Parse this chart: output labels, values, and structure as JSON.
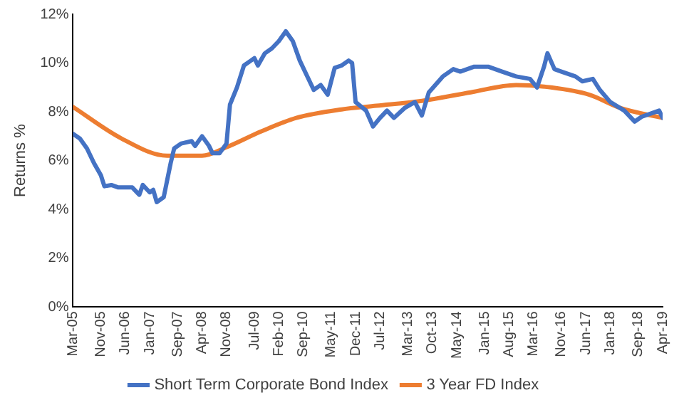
{
  "chart_data": {
    "type": "line",
    "ylabel": "Returns %",
    "legend": "bottom",
    "line_style": "solid",
    "marker": "none",
    "xlim": [
      "2005-03",
      "2019-04"
    ],
    "xticks": [
      {
        "value": "2005-03",
        "label": "Mar-05"
      },
      {
        "value": "2005-11",
        "label": "Nov-05"
      },
      {
        "value": "2006-06",
        "label": "Jun-06"
      },
      {
        "value": "2007-01",
        "label": "Jan-07"
      },
      {
        "value": "2007-09",
        "label": "Sep-07"
      },
      {
        "value": "2008-04",
        "label": "Apr-08"
      },
      {
        "value": "2008-11",
        "label": "Nov-08"
      },
      {
        "value": "2009-07",
        "label": "Jul-09"
      },
      {
        "value": "2010-02",
        "label": "Feb-10"
      },
      {
        "value": "2010-09",
        "label": "Sep-10"
      },
      {
        "value": "2011-05",
        "label": "May-11"
      },
      {
        "value": "2011-12",
        "label": "Dec-11"
      },
      {
        "value": "2012-07",
        "label": "Jul-12"
      },
      {
        "value": "2013-03",
        "label": "Mar-13"
      },
      {
        "value": "2013-10",
        "label": "Oct-13"
      },
      {
        "value": "2014-05",
        "label": "May-14"
      },
      {
        "value": "2015-01",
        "label": "Jan-15"
      },
      {
        "value": "2015-08",
        "label": "Aug-15"
      },
      {
        "value": "2016-03",
        "label": "Mar-16"
      },
      {
        "value": "2016-11",
        "label": "Nov-16"
      },
      {
        "value": "2017-06",
        "label": "Jun-17"
      },
      {
        "value": "2018-01",
        "label": "Jan-18"
      },
      {
        "value": "2018-09",
        "label": "Sep-18"
      },
      {
        "value": "2019-04",
        "label": "Apr-19"
      }
    ],
    "ylim": [
      0,
      12
    ],
    "yticks": [
      {
        "value": 0,
        "label": "0%"
      },
      {
        "value": 2,
        "label": "2%"
      },
      {
        "value": 4,
        "label": "4%"
      },
      {
        "value": 6,
        "label": "6%"
      },
      {
        "value": 8,
        "label": "8%"
      },
      {
        "value": 10,
        "label": "10%"
      },
      {
        "value": 12,
        "label": "12%"
      }
    ],
    "series": [
      {
        "name": "Short Term Corporate Bond Index",
        "color": "#4472c4",
        "x": [
          "2005-03",
          "2005-05",
          "2005-07",
          "2005-09",
          "2005-11",
          "2005-12",
          "2006-02",
          "2006-04",
          "2006-08",
          "2006-10",
          "2006-11",
          "2007-01",
          "2007-02",
          "2007-03",
          "2007-05",
          "2007-07",
          "2007-08",
          "2007-10",
          "2008-01",
          "2008-02",
          "2008-04",
          "2008-06",
          "2008-07",
          "2008-09",
          "2008-11",
          "2008-12",
          "2009-02",
          "2009-04",
          "2009-06",
          "2009-07",
          "2009-08",
          "2009-10",
          "2009-12",
          "2010-02",
          "2010-04",
          "2010-06",
          "2010-08",
          "2010-10",
          "2010-12",
          "2011-02",
          "2011-04",
          "2011-06",
          "2011-08",
          "2011-10",
          "2011-11",
          "2011-12",
          "2012-03",
          "2012-05",
          "2012-07",
          "2012-09",
          "2012-11",
          "2013-02",
          "2013-05",
          "2013-07",
          "2013-09",
          "2014-01",
          "2014-04",
          "2014-06",
          "2014-10",
          "2015-02",
          "2015-06",
          "2015-10",
          "2016-02",
          "2016-04",
          "2016-06",
          "2016-07",
          "2016-09",
          "2016-11",
          "2017-03",
          "2017-05",
          "2017-08",
          "2017-10",
          "2018-01",
          "2018-05",
          "2018-08",
          "2018-10",
          "2019-01",
          "2019-03",
          "2019-04"
        ],
        "values": [
          7.1,
          6.9,
          6.5,
          5.9,
          5.4,
          4.95,
          5.0,
          4.9,
          4.9,
          4.6,
          5.0,
          4.7,
          4.8,
          4.3,
          4.5,
          5.9,
          6.5,
          6.7,
          6.8,
          6.6,
          7.0,
          6.6,
          6.3,
          6.3,
          6.7,
          8.3,
          9.0,
          9.9,
          10.1,
          10.2,
          9.9,
          10.4,
          10.6,
          10.9,
          11.3,
          10.9,
          10.1,
          9.5,
          8.9,
          9.1,
          8.7,
          9.8,
          9.9,
          10.1,
          10.0,
          8.4,
          8.05,
          7.4,
          7.75,
          8.05,
          7.75,
          8.15,
          8.4,
          7.85,
          8.8,
          9.45,
          9.75,
          9.65,
          9.85,
          9.85,
          9.65,
          9.45,
          9.35,
          9.0,
          9.85,
          10.4,
          9.75,
          9.65,
          9.45,
          9.25,
          9.35,
          8.9,
          8.4,
          8.05,
          7.6,
          7.8,
          7.95,
          8.05,
          7.75
        ]
      },
      {
        "name": "3 Year FD Index",
        "color": "#ed7d31",
        "x": [
          "2005-03",
          "2006-05",
          "2007-06",
          "2008-04",
          "2008-11",
          "2009-09",
          "2010-07",
          "2011-08",
          "2012-06",
          "2013-07",
          "2014-09",
          "2015-10",
          "2016-08",
          "2017-07",
          "2018-04",
          "2019-04"
        ],
        "values": [
          8.2,
          6.9,
          6.2,
          6.2,
          6.55,
          7.2,
          7.75,
          8.1,
          8.25,
          8.45,
          8.8,
          9.1,
          9.0,
          8.7,
          8.15,
          7.75
        ]
      }
    ]
  }
}
